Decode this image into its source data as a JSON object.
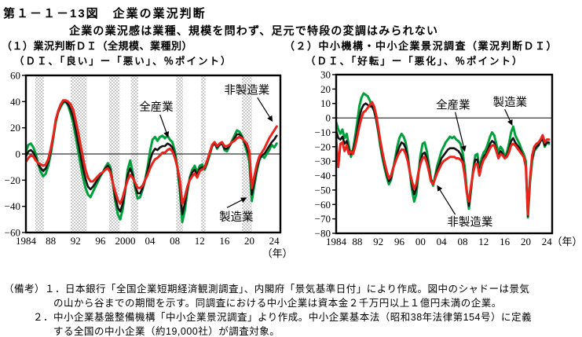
{
  "title": "第１－１－13図　企業の業況判断",
  "subtitle": "企業の業況感は業種、規模を問わず、足元で特段の変調はみられない",
  "colors": {
    "manufacturing": "#00a03c",
    "all_industries": "#141414",
    "non_manufacturing": "#e8251c",
    "shade": "#c9c9c9",
    "axis": "#000000"
  },
  "panels": [
    {
      "heading": "（１）業況判断ＤＩ（全規模、業種別）",
      "unit_label": "（ＤＩ、「良い」ー「悪い」、％ポイント）"
    },
    {
      "heading": "（２）中小機構・中小企業景況調査（業況判断ＤＩ）",
      "unit_label": "（ＤＩ、「好転」ー「悪化」、％ポイント）"
    }
  ],
  "notes": [
    {
      "text": "（備考）１．日本銀行「全国企業短期経済観測調査」、内閣府「景気基準日付」により作成。図中のシャドーは景気"
    },
    {
      "text": "の山から谷までの期間を示す。同調査における中小企業は資本金２千万円以上１億円未満の企業。"
    },
    {
      "text": "２．中小企業基盤整備機構「中小企業景況調査」より作成。中小企業基本法（昭和38年法律第154号）に定義"
    },
    {
      "text": "する全国の中小企業（約19,000社）が調査対象。"
    }
  ],
  "chart_data": [
    {
      "type": "line",
      "title": "業況判断ＤＩ（全規模、業種別）",
      "x_range": [
        1984,
        2025
      ],
      "y_range": [
        -60,
        60
      ],
      "y_ticks": [
        60,
        40,
        20,
        0,
        -20,
        -40,
        -60
      ],
      "x_ticks": [
        [
          1984,
          "1984"
        ],
        [
          1988,
          "88"
        ],
        [
          1992,
          "92"
        ],
        [
          1996,
          "96"
        ],
        [
          2000,
          "2000"
        ],
        [
          2004,
          "04"
        ],
        [
          2008,
          "08"
        ],
        [
          2012,
          "12"
        ],
        [
          2016,
          "16"
        ],
        [
          2020,
          "20"
        ],
        [
          2024,
          "24"
        ]
      ],
      "year_label": {
        "text": "（年）",
        "mode": "below"
      },
      "zero_line": true,
      "shaded_periods": [
        [
          1985.5,
          1986.9
        ],
        [
          1991.2,
          1993.8
        ],
        [
          1997.4,
          1999.1
        ],
        [
          2000.9,
          2002.1
        ],
        [
          2008.2,
          2009.3
        ],
        [
          2012.2,
          2012.95
        ],
        [
          2018.8,
          2020.4
        ]
      ],
      "x": [
        1984,
        1984.4,
        1984.8,
        1985.2,
        1985.6,
        1986,
        1986.4,
        1986.8,
        1987.2,
        1987.6,
        1988,
        1988.4,
        1988.8,
        1989.2,
        1989.6,
        1990,
        1990.4,
        1990.8,
        1991.2,
        1991.6,
        1992,
        1992.4,
        1992.8,
        1993.2,
        1993.6,
        1994,
        1994.4,
        1994.8,
        1995.2,
        1995.6,
        1996,
        1996.4,
        1996.8,
        1997.2,
        1997.6,
        1998,
        1998.4,
        1998.8,
        1999.2,
        1999.6,
        2000,
        2000.4,
        2000.8,
        2001.2,
        2001.6,
        2002,
        2002.4,
        2002.8,
        2003.2,
        2003.6,
        2004,
        2004.4,
        2004.8,
        2005.2,
        2005.6,
        2006,
        2006.4,
        2006.8,
        2007.2,
        2007.6,
        2008,
        2008.4,
        2008.8,
        2009.2,
        2009.6,
        2010,
        2010.4,
        2010.8,
        2011.2,
        2011.6,
        2012,
        2012.4,
        2012.8,
        2013.2,
        2013.6,
        2014,
        2014.4,
        2014.8,
        2015.2,
        2015.6,
        2016,
        2016.4,
        2016.8,
        2017.2,
        2017.6,
        2018,
        2018.4,
        2018.8,
        2019.2,
        2019.6,
        2020,
        2020.4,
        2020.8,
        2021.2,
        2021.6,
        2022,
        2022.4,
        2022.8,
        2023.2,
        2023.6,
        2024,
        2024.4
      ],
      "series": [
        {
          "name": "製造業",
          "color": "manufacturing",
          "values": [
            2,
            7,
            8,
            5,
            0,
            -8,
            -14,
            -17,
            -15,
            -9,
            0,
            12,
            24,
            32,
            36,
            39,
            40,
            37,
            31,
            24,
            14,
            3,
            -8,
            -18,
            -26,
            -31,
            -33,
            -29,
            -25,
            -21,
            -17,
            -14,
            -10,
            -7,
            -10,
            -22,
            -36,
            -46,
            -50,
            -42,
            -28,
            -12,
            -5,
            -14,
            -26,
            -34,
            -33,
            -27,
            -20,
            -10,
            2,
            11,
            13,
            10,
            13,
            14,
            12,
            14,
            11,
            9,
            2,
            -10,
            -28,
            -52,
            -43,
            -29,
            -18,
            -12,
            -9,
            -14,
            -9,
            -8,
            -12,
            -7,
            -1,
            6,
            9,
            4,
            7,
            9,
            3,
            2,
            6,
            10,
            14,
            18,
            17,
            14,
            8,
            2,
            -6,
            -36,
            -24,
            -13,
            -5,
            -1,
            -3,
            0,
            3,
            7,
            5,
            8
          ]
        },
        {
          "name": "全産業",
          "color": "all_industries",
          "values": [
            -2,
            2,
            3,
            1,
            -3,
            -8,
            -11,
            -13,
            -11,
            -6,
            2,
            13,
            25,
            32,
            37,
            40,
            40,
            38,
            34,
            28,
            19,
            9,
            -1,
            -11,
            -19,
            -25,
            -27,
            -25,
            -22,
            -19,
            -16,
            -14,
            -11,
            -9,
            -12,
            -22,
            -33,
            -41,
            -44,
            -38,
            -27,
            -16,
            -11,
            -16,
            -24,
            -30,
            -30,
            -26,
            -20,
            -13,
            -5,
            1,
            4,
            3,
            5,
            6,
            6,
            8,
            7,
            5,
            -1,
            -10,
            -24,
            -46,
            -38,
            -27,
            -19,
            -14,
            -12,
            -16,
            -11,
            -10,
            -11,
            -6,
            0,
            6,
            8,
            5,
            7,
            8,
            4,
            4,
            6,
            9,
            12,
            15,
            15,
            13,
            9,
            5,
            -2,
            -31,
            -21,
            -11,
            -4,
            -1,
            0,
            3,
            6,
            9,
            11,
            14
          ]
        },
        {
          "name": "非製造業",
          "color": "non_manufacturing",
          "values": [
            -6,
            -3,
            -1,
            -2,
            -5,
            -7,
            -8,
            -9,
            -8,
            -4,
            4,
            14,
            26,
            33,
            38,
            41,
            41,
            40,
            38,
            34,
            26,
            17,
            7,
            -3,
            -12,
            -18,
            -21,
            -21,
            -19,
            -17,
            -15,
            -14,
            -12,
            -11,
            -14,
            -22,
            -29,
            -35,
            -38,
            -33,
            -26,
            -20,
            -16,
            -18,
            -22,
            -26,
            -26,
            -24,
            -20,
            -16,
            -11,
            -7,
            -4,
            -3,
            -1,
            1,
            1,
            3,
            4,
            2,
            -3,
            -10,
            -20,
            -38,
            -33,
            -25,
            -20,
            -17,
            -15,
            -18,
            -13,
            -12,
            -10,
            -5,
            1,
            7,
            9,
            6,
            8,
            9,
            6,
            6,
            7,
            9,
            10,
            12,
            13,
            12,
            10,
            8,
            2,
            -26,
            -17,
            -8,
            -2,
            1,
            4,
            8,
            12,
            15,
            18,
            21
          ]
        }
      ],
      "annotations": [
        {
          "text": "全産業",
          "label_pos": [
            2005.0,
            36
          ],
          "arrow_from": [
            2005.6,
            30
          ],
          "arrow_to": [
            2006.9,
            13
          ]
        },
        {
          "text": "非製造業",
          "label_pos": [
            2019.6,
            49
          ],
          "arrow_from": [
            2021.3,
            43
          ],
          "arrow_to": [
            2023.7,
            25
          ]
        },
        {
          "text": "製造業",
          "label_pos": [
            2017.9,
            -48
          ],
          "arrow_from": [
            2016.4,
            -41
          ],
          "arrow_to": [
            2019.5,
            -33.5
          ]
        }
      ]
    },
    {
      "type": "line",
      "title": "中小機構・中小企業景況調査（業況判断ＤＩ）",
      "x_range": [
        1984,
        2025
      ],
      "y_range": [
        -80,
        30
      ],
      "y_ticks": [
        30,
        20,
        10,
        0,
        -10,
        -20,
        -30,
        -40,
        -50,
        -60,
        -70,
        -80
      ],
      "x_ticks": [
        [
          1984,
          "1984"
        ],
        [
          1988,
          "88"
        ],
        [
          1992,
          "92"
        ],
        [
          1996,
          "96"
        ],
        [
          2000,
          "00"
        ],
        [
          2004,
          "04"
        ],
        [
          2008,
          "08"
        ],
        [
          2012,
          "12"
        ],
        [
          2016,
          "16"
        ],
        [
          2020,
          "20"
        ],
        [
          2024,
          "24"
        ]
      ],
      "year_label": {
        "text": "（年）",
        "mode": "side"
      },
      "zero_line": true,
      "shaded_periods": [],
      "x": [
        1984,
        1984.4,
        1984.8,
        1985.2,
        1985.6,
        1986,
        1986.4,
        1986.8,
        1987.2,
        1987.6,
        1988,
        1988.4,
        1988.8,
        1989.2,
        1989.6,
        1990,
        1990.4,
        1990.8,
        1991.2,
        1991.6,
        1992,
        1992.4,
        1992.8,
        1993.2,
        1993.6,
        1994,
        1994.4,
        1994.8,
        1995.2,
        1995.6,
        1996,
        1996.4,
        1996.8,
        1997.2,
        1997.6,
        1998,
        1998.4,
        1998.8,
        1999.2,
        1999.6,
        2000,
        2000.4,
        2000.8,
        2001.2,
        2001.6,
        2002,
        2002.4,
        2002.8,
        2003.2,
        2003.6,
        2004,
        2004.4,
        2004.8,
        2005.2,
        2005.6,
        2006,
        2006.4,
        2006.8,
        2007.2,
        2007.6,
        2008,
        2008.4,
        2008.8,
        2009.2,
        2009.6,
        2010,
        2010.4,
        2010.8,
        2011.2,
        2011.6,
        2012,
        2012.4,
        2012.8,
        2013.2,
        2013.6,
        2014,
        2014.4,
        2014.8,
        2015.2,
        2015.6,
        2016,
        2016.4,
        2016.8,
        2017.2,
        2017.6,
        2018,
        2018.4,
        2018.8,
        2019.2,
        2019.6,
        2020,
        2020.4,
        2020.8,
        2021.2,
        2021.6,
        2022,
        2022.4,
        2022.8,
        2023.2,
        2023.6,
        2024,
        2024.4
      ],
      "series": [
        {
          "name": "製造業",
          "color": "manufacturing",
          "values": [
            -3,
            -8,
            -11,
            -8,
            -14,
            -11,
            -19,
            -27,
            -22,
            -13,
            -3,
            8,
            14,
            17,
            16,
            15,
            12,
            8,
            5,
            -1,
            -10,
            -20,
            -28,
            -35,
            -41,
            -46,
            -43,
            -36,
            -28,
            -20,
            -14,
            -11,
            -13,
            -17,
            -26,
            -38,
            -50,
            -58,
            -53,
            -40,
            -26,
            -18,
            -17,
            -23,
            -32,
            -42,
            -47,
            -40,
            -33,
            -28,
            -23,
            -20,
            -17,
            -15,
            -13,
            -14,
            -13,
            -15,
            -16,
            -18,
            -24,
            -34,
            -50,
            -63,
            -50,
            -36,
            -26,
            -25,
            -36,
            -28,
            -24,
            -22,
            -18,
            -13,
            -10,
            -12,
            -18,
            -24,
            -20,
            -22,
            -27,
            -24,
            -18,
            -10,
            -6,
            -12,
            -15,
            -18,
            -22,
            -25,
            -30,
            -69,
            -45,
            -30,
            -23,
            -21,
            -19,
            -16,
            -14,
            -20,
            -17,
            -18
          ]
        },
        {
          "name": "全産業",
          "color": "all_industries",
          "values": [
            -9,
            -14,
            -15,
            -13,
            -18,
            -16,
            -22,
            -25,
            -23,
            -17,
            -9,
            0,
            6,
            9,
            10,
            9,
            8,
            8,
            5,
            -1,
            -9,
            -18,
            -26,
            -33,
            -39,
            -44,
            -42,
            -35,
            -30,
            -24,
            -20,
            -17,
            -18,
            -21,
            -28,
            -38,
            -47,
            -53,
            -49,
            -39,
            -30,
            -25,
            -24,
            -28,
            -35,
            -43,
            -46,
            -41,
            -36,
            -32,
            -28,
            -26,
            -24,
            -22,
            -21,
            -21,
            -21,
            -22,
            -23,
            -25,
            -29,
            -38,
            -52,
            -61,
            -49,
            -37,
            -29,
            -29,
            -38,
            -31,
            -27,
            -25,
            -22,
            -18,
            -16,
            -17,
            -22,
            -27,
            -23,
            -25,
            -28,
            -26,
            -22,
            -16,
            -14,
            -17,
            -19,
            -21,
            -24,
            -27,
            -33,
            -68,
            -43,
            -28,
            -22,
            -20,
            -19,
            -16,
            -15,
            -19,
            -17,
            -17
          ]
        },
        {
          "name": "非製造業",
          "color": "non_manufacturing",
          "values": [
            -15,
            -34,
            -18,
            -17,
            -23,
            -19,
            -25,
            -23,
            -25,
            -20,
            -13,
            -6,
            0,
            4,
            5,
            7,
            9,
            11,
            8,
            2,
            -7,
            -16,
            -24,
            -31,
            -37,
            -42,
            -40,
            -35,
            -31,
            -27,
            -24,
            -22,
            -22,
            -25,
            -30,
            -38,
            -44,
            -49,
            -46,
            -38,
            -32,
            -28,
            -27,
            -31,
            -37,
            -44,
            -46,
            -42,
            -38,
            -35,
            -32,
            -30,
            -29,
            -28,
            -27,
            -27,
            -27,
            -28,
            -28,
            -29,
            -31,
            -40,
            -52,
            -58,
            -47,
            -38,
            -32,
            -32,
            -40,
            -33,
            -29,
            -27,
            -24,
            -21,
            -19,
            -19,
            -23,
            -28,
            -25,
            -26,
            -28,
            -27,
            -24,
            -19,
            -18,
            -19,
            -21,
            -23,
            -25,
            -27,
            -34,
            -67,
            -42,
            -26,
            -20,
            -18,
            -17,
            -15,
            -12,
            -17,
            -15,
            -15
          ]
        }
      ],
      "annotations": [
        {
          "text": "全産業",
          "label_pos": [
            2006.2,
            9
          ],
          "arrow_from": [
            2006.6,
            4
          ],
          "arrow_to": [
            2008.4,
            -23
          ]
        },
        {
          "text": "製造業",
          "label_pos": [
            2017.0,
            11
          ],
          "arrow_from": [
            2016.0,
            6
          ],
          "arrow_to": [
            2017.4,
            -5
          ]
        },
        {
          "text": "非製造業",
          "label_pos": [
            2009.4,
            -72
          ],
          "arrow_from": [
            2006.6,
            -67
          ],
          "arrow_to": [
            2003.2,
            -47
          ]
        }
      ]
    }
  ]
}
